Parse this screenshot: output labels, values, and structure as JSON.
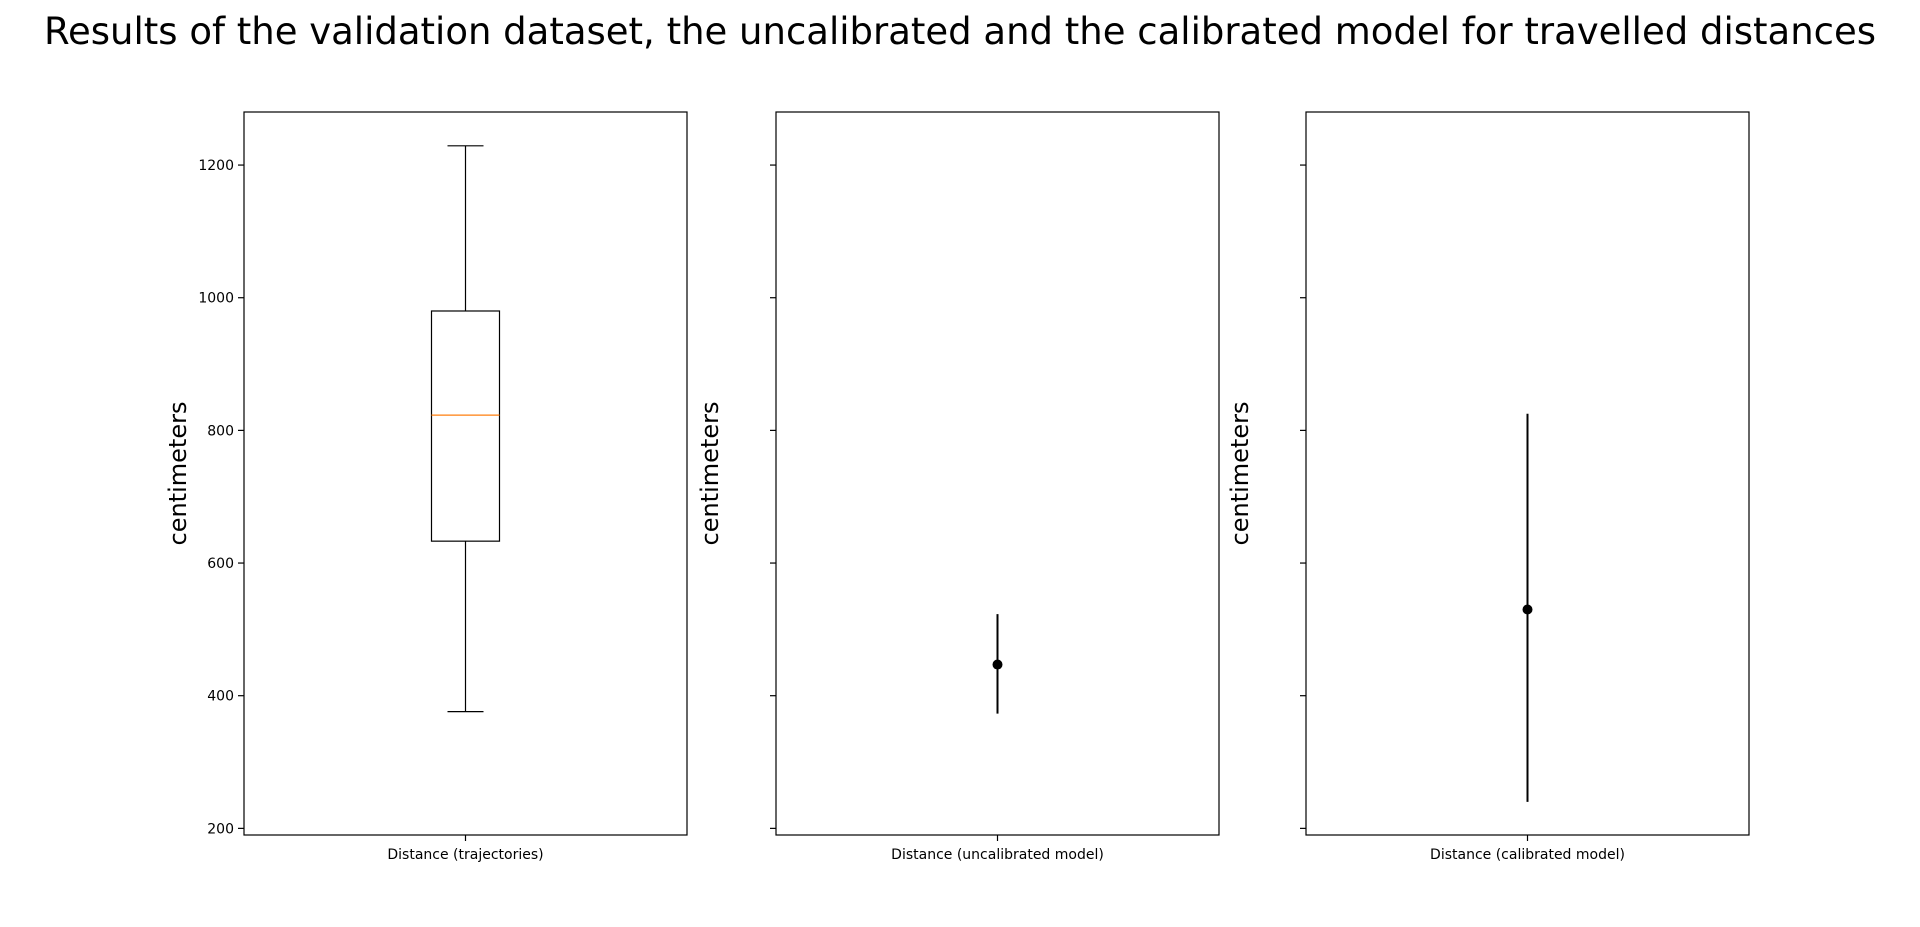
{
  "chart_data": {
    "title": "Results of the validation dataset, the uncalibrated and the calibrated model for travelled distances",
    "ylim": [
      190,
      1280
    ],
    "yticks": [
      200,
      400,
      600,
      800,
      1000,
      1200
    ],
    "sharey": true,
    "colors": {
      "median": "#ff7f0e",
      "line": "#000000"
    },
    "panels": [
      {
        "type": "box",
        "xlabel": "Distance (trajectories)",
        "ylabel": "centimeters",
        "show_tick_labels": true,
        "box": {
          "whisker_low": 376,
          "q1": 633,
          "median": 823,
          "q3": 980,
          "whisker_high": 1229
        }
      },
      {
        "type": "errorbar",
        "xlabel": "Distance (uncalibrated model)",
        "ylabel": "centimeters",
        "show_tick_labels": false,
        "point": {
          "y": 447,
          "low": 373,
          "high": 523
        }
      },
      {
        "type": "errorbar",
        "xlabel": "Distance (calibrated model)",
        "ylabel": "centimeters",
        "show_tick_labels": false,
        "point": {
          "y": 530,
          "low": 240,
          "high": 825
        }
      }
    ]
  }
}
